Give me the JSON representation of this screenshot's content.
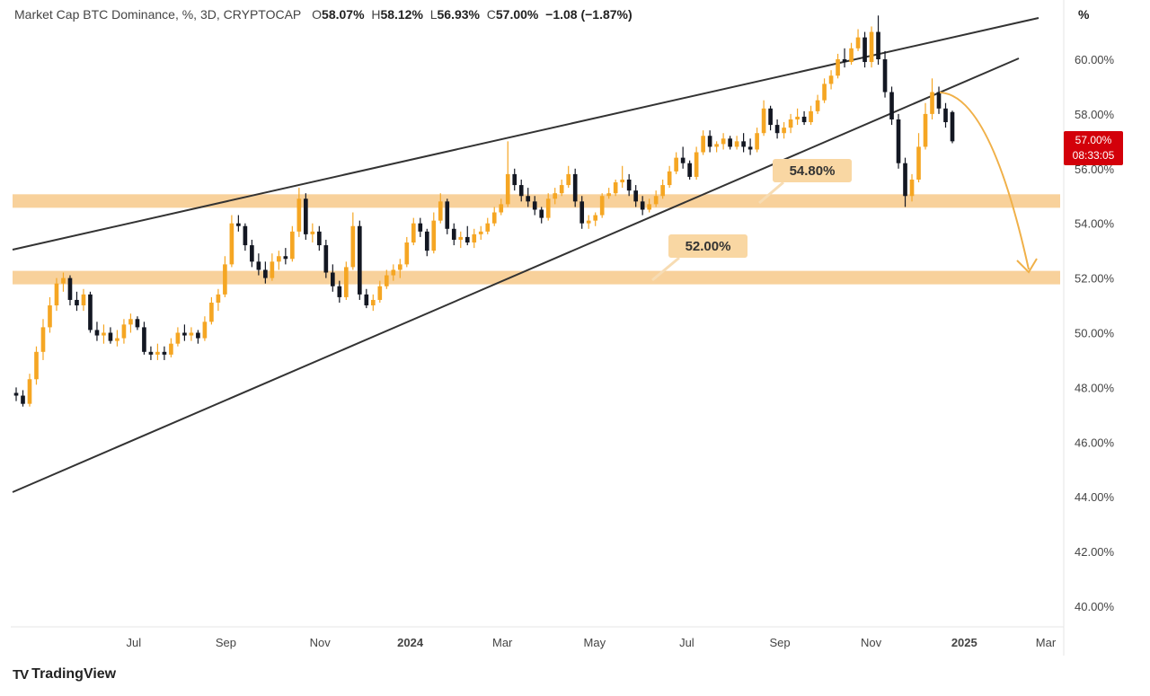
{
  "header": {
    "title": "Market Cap BTC Dominance, %, 3D, CRYPTOCAP",
    "open_label": "O",
    "open": "58.07%",
    "high_label": "H",
    "high": "58.12%",
    "low_label": "L",
    "low": "56.93%",
    "close_label": "C",
    "close": "57.00%",
    "change": "−1.08 (−1.87%)"
  },
  "unit_label": "%",
  "price_tag": {
    "value": "57.00%",
    "timer": "08:33:05",
    "color": "#d3000a"
  },
  "brand": {
    "logo": "TV",
    "name": "TradingView"
  },
  "colors": {
    "up": "#f5a623",
    "down": "#131722",
    "band": "#f7c98a",
    "arrow": "#f0b048"
  },
  "chart_data": {
    "type": "candlestick",
    "y_range": [
      39.2,
      62.2
    ],
    "y_ticks": [
      "40.00%",
      "42.00%",
      "44.00%",
      "46.00%",
      "48.00%",
      "50.00%",
      "52.00%",
      "54.00%",
      "56.00%",
      "58.00%",
      "60.00%"
    ],
    "y_tick_values": [
      40,
      42,
      44,
      46,
      48,
      50,
      52,
      54,
      56,
      58,
      60
    ],
    "x_ticks": [
      {
        "label": "Jul",
        "t": 0.06
      },
      {
        "label": "Sep",
        "t": 0.155
      },
      {
        "label": "Nov",
        "t": 0.252
      },
      {
        "label": "2024",
        "t": 0.345,
        "bold": true
      },
      {
        "label": "Mar",
        "t": 0.44
      },
      {
        "label": "May",
        "t": 0.535
      },
      {
        "label": "Jul",
        "t": 0.63
      },
      {
        "label": "Sep",
        "t": 0.726
      },
      {
        "label": "Nov",
        "t": 0.82
      },
      {
        "label": "2025",
        "t": 0.916,
        "bold": true
      },
      {
        "label": "Mar",
        "t": 1.0
      }
    ],
    "candles": [
      [
        47.8,
        48.0,
        47.5,
        47.7
      ],
      [
        47.7,
        47.9,
        47.3,
        47.4
      ],
      [
        47.4,
        48.5,
        47.3,
        48.3
      ],
      [
        48.3,
        49.5,
        48.1,
        49.3
      ],
      [
        49.3,
        50.5,
        49.0,
        50.2
      ],
      [
        50.2,
        51.3,
        50.0,
        51.0
      ],
      [
        51.0,
        52.0,
        50.8,
        51.8
      ],
      [
        51.8,
        52.2,
        51.5,
        52.0
      ],
      [
        52.0,
        52.1,
        51.0,
        51.2
      ],
      [
        51.2,
        51.5,
        50.8,
        51.0
      ],
      [
        51.0,
        51.6,
        50.8,
        51.4
      ],
      [
        51.4,
        51.5,
        50.0,
        50.1
      ],
      [
        50.1,
        50.4,
        49.7,
        49.9
      ],
      [
        49.9,
        50.3,
        49.6,
        50.0
      ],
      [
        50.0,
        50.2,
        49.6,
        49.7
      ],
      [
        49.7,
        50.1,
        49.5,
        49.8
      ],
      [
        49.8,
        50.5,
        49.6,
        50.3
      ],
      [
        50.3,
        50.7,
        50.0,
        50.5
      ],
      [
        50.5,
        50.6,
        50.1,
        50.2
      ],
      [
        50.2,
        50.4,
        49.2,
        49.3
      ],
      [
        49.3,
        49.5,
        49.0,
        49.2
      ],
      [
        49.2,
        49.6,
        49.0,
        49.3
      ],
      [
        49.3,
        49.5,
        49.0,
        49.2
      ],
      [
        49.2,
        49.8,
        49.1,
        49.6
      ],
      [
        49.6,
        50.2,
        49.5,
        50.0
      ],
      [
        50.0,
        50.3,
        49.7,
        49.9
      ],
      [
        49.9,
        50.2,
        49.7,
        50.0
      ],
      [
        50.0,
        50.1,
        49.6,
        49.8
      ],
      [
        49.8,
        50.6,
        49.7,
        50.4
      ],
      [
        50.4,
        51.3,
        50.3,
        51.1
      ],
      [
        51.1,
        51.6,
        50.8,
        51.4
      ],
      [
        51.4,
        52.8,
        51.3,
        52.5
      ],
      [
        52.5,
        54.3,
        52.4,
        54.0
      ],
      [
        54.0,
        54.3,
        53.7,
        53.9
      ],
      [
        53.9,
        54.0,
        53.0,
        53.2
      ],
      [
        53.2,
        53.4,
        52.4,
        52.6
      ],
      [
        52.6,
        52.9,
        52.1,
        52.3
      ],
      [
        52.3,
        52.6,
        51.8,
        52.0
      ],
      [
        52.0,
        52.9,
        51.9,
        52.6
      ],
      [
        52.6,
        53.0,
        52.3,
        52.8
      ],
      [
        52.8,
        53.1,
        52.5,
        52.7
      ],
      [
        52.7,
        53.9,
        52.6,
        53.7
      ],
      [
        53.7,
        55.3,
        53.5,
        54.9
      ],
      [
        54.9,
        55.1,
        53.4,
        53.6
      ],
      [
        53.6,
        54.0,
        53.3,
        53.7
      ],
      [
        53.7,
        53.9,
        53.0,
        53.2
      ],
      [
        53.2,
        53.4,
        52.0,
        52.2
      ],
      [
        52.2,
        52.5,
        51.5,
        51.7
      ],
      [
        51.7,
        51.9,
        51.1,
        51.3
      ],
      [
        51.3,
        52.6,
        51.2,
        52.4
      ],
      [
        52.4,
        54.4,
        52.3,
        53.9
      ],
      [
        53.9,
        54.1,
        51.2,
        51.4
      ],
      [
        51.4,
        51.6,
        50.9,
        51.0
      ],
      [
        51.0,
        51.4,
        50.8,
        51.2
      ],
      [
        51.2,
        51.9,
        51.1,
        51.7
      ],
      [
        51.7,
        52.3,
        51.6,
        52.1
      ],
      [
        52.1,
        52.5,
        51.9,
        52.3
      ],
      [
        52.3,
        52.7,
        52.0,
        52.5
      ],
      [
        52.5,
        53.5,
        52.4,
        53.3
      ],
      [
        53.3,
        54.2,
        53.2,
        54.0
      ],
      [
        54.0,
        54.2,
        53.5,
        53.7
      ],
      [
        53.7,
        53.8,
        52.8,
        53.0
      ],
      [
        53.0,
        54.4,
        52.9,
        54.1
      ],
      [
        54.1,
        55.1,
        54.0,
        54.8
      ],
      [
        54.8,
        54.9,
        53.6,
        53.8
      ],
      [
        53.8,
        54.0,
        53.2,
        53.4
      ],
      [
        53.4,
        53.7,
        53.1,
        53.5
      ],
      [
        53.5,
        53.9,
        53.2,
        53.3
      ],
      [
        53.3,
        53.8,
        53.1,
        53.6
      ],
      [
        53.6,
        53.9,
        53.4,
        53.7
      ],
      [
        53.7,
        54.2,
        53.6,
        54.0
      ],
      [
        54.0,
        54.6,
        53.9,
        54.4
      ],
      [
        54.4,
        54.9,
        54.3,
        54.7
      ],
      [
        54.7,
        57.0,
        54.6,
        55.8
      ],
      [
        55.8,
        56.0,
        55.2,
        55.4
      ],
      [
        55.4,
        55.6,
        54.8,
        55.0
      ],
      [
        55.0,
        55.3,
        54.6,
        54.8
      ],
      [
        54.8,
        55.0,
        54.3,
        54.5
      ],
      [
        54.5,
        54.6,
        54.0,
        54.2
      ],
      [
        54.2,
        55.1,
        54.1,
        54.9
      ],
      [
        54.9,
        55.3,
        54.7,
        55.1
      ],
      [
        55.1,
        55.6,
        55.0,
        55.4
      ],
      [
        55.4,
        56.1,
        55.3,
        55.8
      ],
      [
        55.8,
        56.0,
        54.6,
        54.8
      ],
      [
        54.8,
        55.0,
        53.8,
        54.0
      ],
      [
        54.0,
        54.3,
        53.8,
        54.1
      ],
      [
        54.1,
        54.4,
        53.9,
        54.3
      ],
      [
        54.3,
        55.1,
        54.2,
        55.0
      ],
      [
        55.0,
        55.3,
        54.9,
        55.1
      ],
      [
        55.1,
        55.6,
        55.0,
        55.5
      ],
      [
        55.5,
        56.1,
        55.3,
        55.6
      ],
      [
        55.6,
        55.8,
        55.0,
        55.2
      ],
      [
        55.2,
        55.4,
        54.6,
        54.8
      ],
      [
        54.8,
        55.0,
        54.3,
        54.5
      ],
      [
        54.5,
        54.9,
        54.4,
        54.7
      ],
      [
        54.7,
        55.2,
        54.6,
        55.0
      ],
      [
        55.0,
        55.6,
        54.9,
        55.4
      ],
      [
        55.4,
        56.1,
        55.3,
        55.9
      ],
      [
        55.9,
        56.6,
        55.8,
        56.4
      ],
      [
        56.4,
        56.8,
        56.0,
        56.2
      ],
      [
        56.2,
        56.3,
        55.6,
        55.7
      ],
      [
        55.7,
        56.8,
        55.6,
        56.6
      ],
      [
        56.6,
        57.4,
        56.5,
        57.2
      ],
      [
        57.2,
        57.4,
        56.6,
        56.8
      ],
      [
        56.8,
        57.0,
        56.6,
        56.9
      ],
      [
        56.9,
        57.3,
        56.7,
        57.1
      ],
      [
        57.1,
        57.2,
        56.7,
        56.8
      ],
      [
        56.8,
        57.2,
        56.7,
        57.0
      ],
      [
        57.0,
        57.3,
        56.6,
        56.8
      ],
      [
        56.8,
        57.1,
        56.5,
        56.7
      ],
      [
        56.7,
        57.5,
        56.6,
        57.3
      ],
      [
        57.3,
        58.5,
        57.2,
        58.2
      ],
      [
        58.2,
        58.3,
        57.4,
        57.6
      ],
      [
        57.6,
        57.8,
        57.1,
        57.3
      ],
      [
        57.3,
        57.7,
        57.1,
        57.5
      ],
      [
        57.5,
        58.0,
        57.3,
        57.8
      ],
      [
        57.8,
        58.2,
        57.6,
        57.9
      ],
      [
        57.9,
        58.1,
        57.6,
        57.7
      ],
      [
        57.7,
        58.3,
        57.6,
        58.1
      ],
      [
        58.1,
        58.7,
        58.0,
        58.5
      ],
      [
        58.5,
        59.3,
        58.4,
        59.1
      ],
      [
        59.1,
        59.6,
        58.9,
        59.4
      ],
      [
        59.4,
        60.2,
        59.3,
        60.0
      ],
      [
        60.0,
        60.4,
        59.7,
        59.9
      ],
      [
        59.9,
        60.6,
        59.8,
        60.4
      ],
      [
        60.4,
        61.1,
        60.3,
        60.8
      ],
      [
        60.8,
        61.0,
        59.7,
        59.9
      ],
      [
        59.9,
        61.2,
        59.7,
        61.0
      ],
      [
        61.0,
        61.6,
        59.8,
        60.0
      ],
      [
        60.0,
        60.3,
        58.6,
        58.8
      ],
      [
        58.8,
        59.0,
        57.6,
        57.8
      ],
      [
        57.8,
        58.0,
        56.0,
        56.2
      ],
      [
        56.2,
        56.4,
        54.6,
        55.0
      ],
      [
        55.0,
        55.8,
        54.8,
        55.6
      ],
      [
        55.6,
        57.3,
        55.5,
        56.8
      ],
      [
        56.8,
        58.4,
        56.7,
        58.0
      ],
      [
        58.0,
        59.3,
        57.8,
        58.8
      ],
      [
        58.8,
        59.0,
        58.0,
        58.2
      ],
      [
        58.2,
        58.4,
        57.5,
        57.7
      ],
      [
        58.07,
        58.12,
        56.93,
        57.0
      ]
    ]
  }
}
